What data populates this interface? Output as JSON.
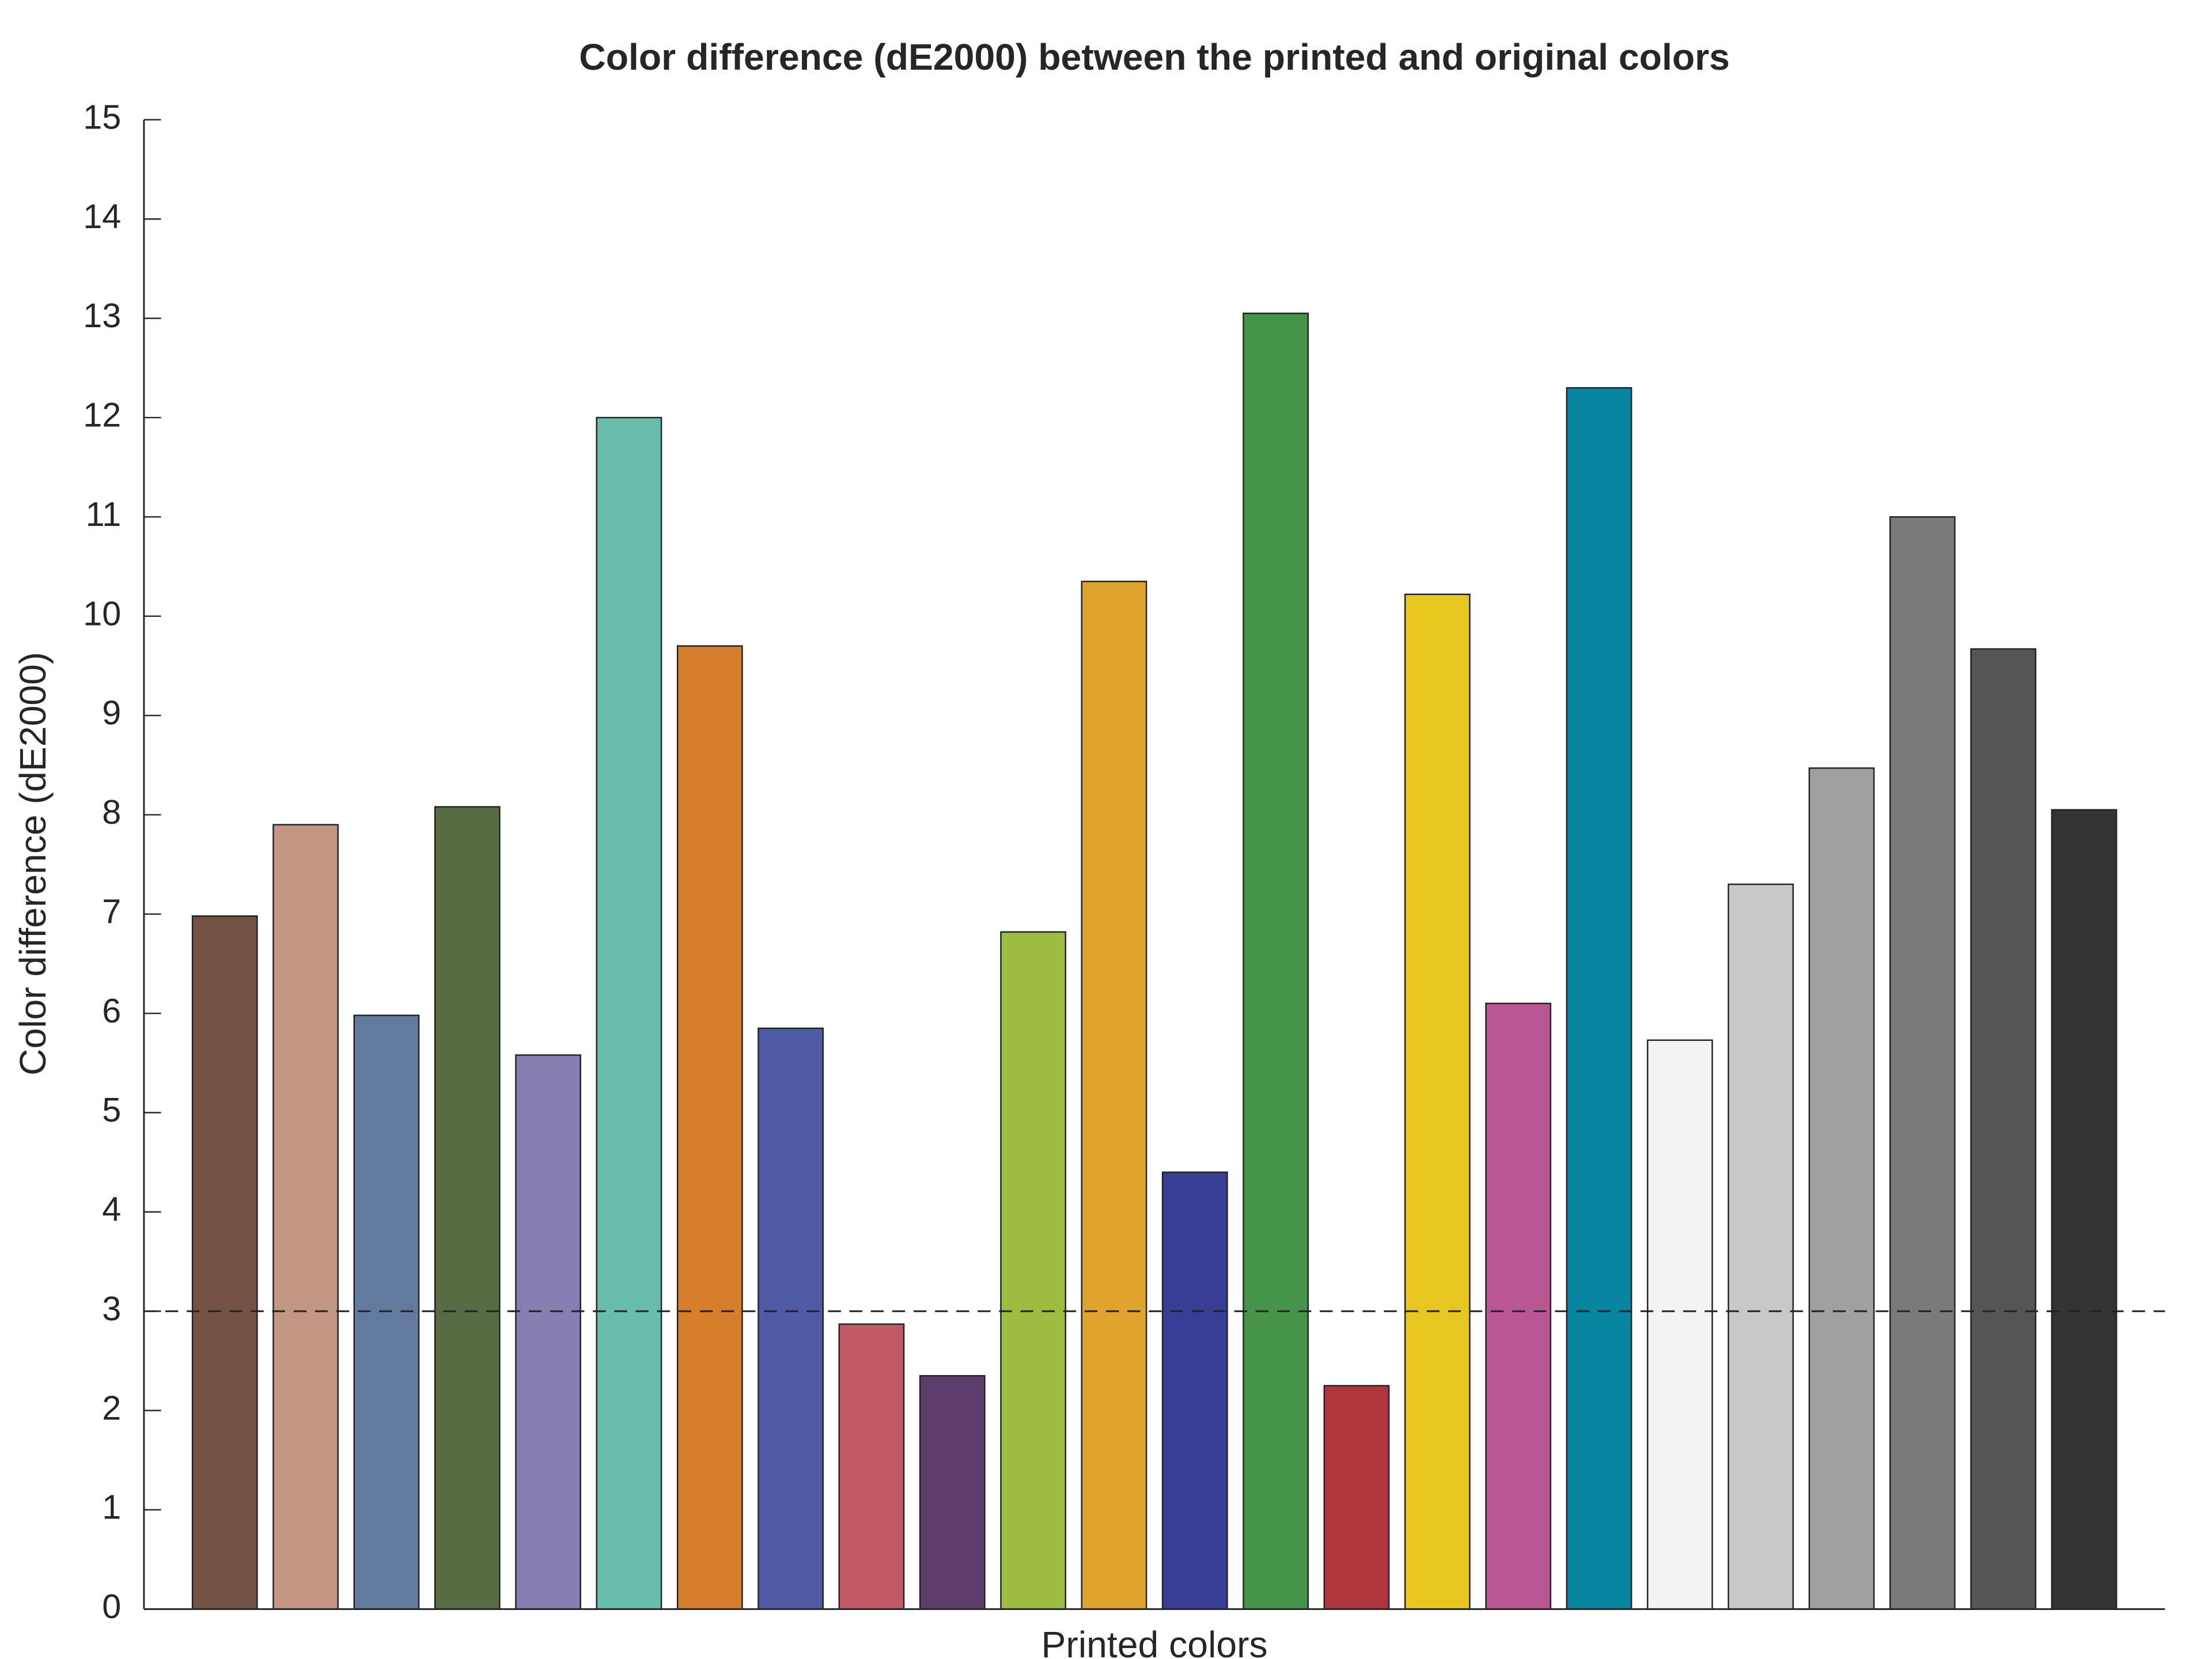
{
  "chart_data": {
    "type": "bar",
    "title": "Color difference (dE2000) between the printed and original colors",
    "x_label": "Printed colors",
    "y_label": "Color difference (dE2000)",
    "categories": [
      null,
      null,
      null,
      null,
      null,
      null,
      null,
      null,
      null,
      null,
      null,
      null,
      null,
      null,
      null,
      null,
      null,
      null,
      null,
      null,
      null,
      null,
      null,
      null
    ],
    "values": [
      6.98,
      7.9,
      5.98,
      8.08,
      5.58,
      12.0,
      9.7,
      5.85,
      2.87,
      2.35,
      6.82,
      10.35,
      4.4,
      13.05,
      2.25,
      10.22,
      6.1,
      12.3,
      5.73,
      7.3,
      8.47,
      11.0,
      9.67,
      8.05
    ],
    "colors": [
      "#735244",
      "#c29682",
      "#627a9d",
      "#576c43",
      "#8580b1",
      "#67bdaa",
      "#d67e2c",
      "#505ba6",
      "#c15a63",
      "#5e3c6c",
      "#9dbc40",
      "#e0a32e",
      "#383d96",
      "#469449",
      "#af363c",
      "#e7c71f",
      "#bb5695",
      "#0885a1",
      "#f3f3f2",
      "#c8c8c8",
      "#a0a0a0",
      "#7a7a79",
      "#555555",
      "#343434"
    ],
    "threshold": 3,
    "ylim": [
      0,
      15
    ],
    "yticks": [
      0,
      1,
      2,
      3,
      4,
      5,
      6,
      7,
      8,
      9,
      10,
      11,
      12,
      13,
      14,
      15
    ],
    "grid": false
  }
}
